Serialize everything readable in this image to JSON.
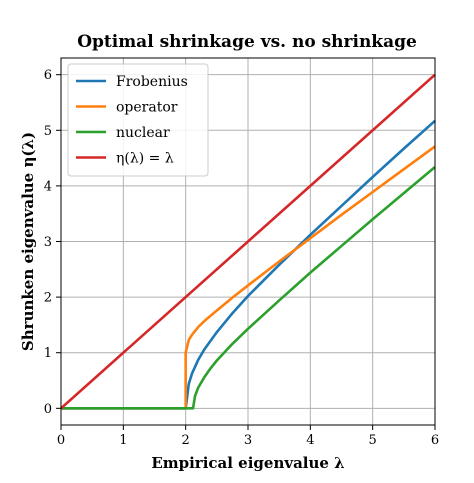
{
  "chart_data": {
    "type": "line",
    "title": "Optimal shrinkage vs. no shrinkage",
    "xlabel": "Empirical eigenvalue λ",
    "ylabel": "Shrunken eigenvalue η(λ)",
    "xlim": [
      0,
      6
    ],
    "ylim": [
      -0.3,
      6.3
    ],
    "xticks": [
      "0",
      "1",
      "2",
      "3",
      "4",
      "5",
      "6"
    ],
    "yticks": [
      "0",
      "1",
      "2",
      "3",
      "4",
      "5",
      "6"
    ],
    "grid": true,
    "legend": "top-left",
    "series": [
      {
        "name": "Frobenius",
        "color": "#1f77b4",
        "x": [
          0,
          2,
          2.0,
          2.05,
          2.1,
          2.2,
          2.3,
          2.5,
          2.75,
          3.0,
          3.5,
          4.0,
          4.5,
          5.0,
          5.5,
          6.0
        ],
        "y": [
          0,
          0,
          0.0,
          0.44,
          0.62,
          0.87,
          1.06,
          1.37,
          1.71,
          2.02,
          2.58,
          3.12,
          3.64,
          4.16,
          4.67,
          5.17
        ]
      },
      {
        "name": "operator",
        "color": "#ff7f0e",
        "x": [
          0,
          2,
          2.0,
          2.05,
          2.1,
          2.2,
          2.3,
          2.5,
          2.75,
          3.0,
          3.5,
          4.0,
          4.5,
          5.0,
          5.5,
          6.0
        ],
        "y": [
          0,
          0,
          1.0,
          1.23,
          1.32,
          1.46,
          1.57,
          1.76,
          1.99,
          2.21,
          2.64,
          3.06,
          3.48,
          3.89,
          4.3,
          4.71
        ]
      },
      {
        "name": "nuclear",
        "color": "#2ca02c",
        "x": [
          0,
          2.0,
          2.118,
          2.15,
          2.2,
          2.3,
          2.4,
          2.5,
          2.75,
          3.0,
          3.5,
          4.0,
          4.5,
          5.0,
          5.5,
          6.0
        ],
        "y": [
          0,
          0,
          0.0,
          0.22,
          0.37,
          0.56,
          0.72,
          0.86,
          1.16,
          1.43,
          1.94,
          2.44,
          2.92,
          3.4,
          3.87,
          4.34
        ]
      },
      {
        "name": "η(λ) = λ",
        "color": "#d62728",
        "x": [
          0,
          6
        ],
        "y": [
          0,
          6
        ]
      }
    ]
  }
}
